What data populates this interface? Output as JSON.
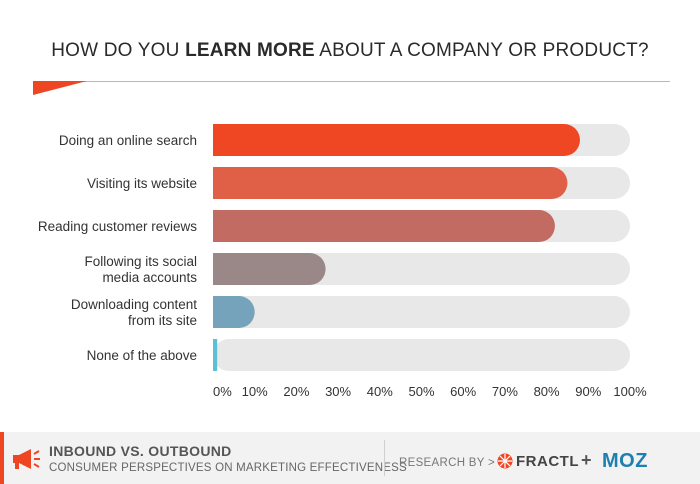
{
  "header": {
    "title_pre": "HOW DO YOU ",
    "title_bold": "LEARN MORE",
    "title_post": " ABOUT A COMPANY OR PRODUCT?"
  },
  "chart_data": {
    "type": "bar",
    "orientation": "horizontal",
    "title": "HOW DO YOU LEARN MORE ABOUT A COMPANY OR PRODUCT?",
    "categories": [
      [
        "Doing an online search"
      ],
      [
        "Visiting its website"
      ],
      [
        "Reading customer reviews"
      ],
      [
        "Following its social",
        "media accounts"
      ],
      [
        "Downloading content",
        "from its site"
      ],
      [
        "None of the above"
      ]
    ],
    "values": [
      88,
      85,
      82,
      27,
      10,
      1
    ],
    "bar_colors": [
      "#ef4623",
      "#df5f47",
      "#c26b62",
      "#9a8888",
      "#74a3bb",
      "#5bbfd6"
    ],
    "track_color": "#e8e8e8",
    "xlim": [
      0,
      100
    ],
    "xticks": [
      "0%",
      "10%",
      "20%",
      "30%",
      "40%",
      "50%",
      "60%",
      "70%",
      "80%",
      "90%",
      "100%"
    ]
  },
  "footer": {
    "title": "INBOUND VS. OUTBOUND",
    "subtitle": "CONSUMER PERSPECTIVES ON MARKETING EFFECTIVENESS",
    "research_by": "RESEARCH BY  >",
    "fractl": "FRACTL",
    "plus": "+",
    "moz": "MOZ",
    "colors": {
      "accent": "#ee4523",
      "moz": "#1f7fb0"
    }
  }
}
